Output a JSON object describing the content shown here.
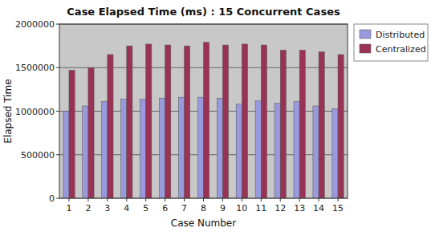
{
  "chart_data": {
    "type": "bar",
    "title": "Case Elapsed Time (ms) : 15 Concurrent Cases",
    "xlabel": "Case Number",
    "ylabel": "Elapsed Time",
    "categories": [
      1,
      2,
      3,
      4,
      5,
      6,
      7,
      8,
      9,
      10,
      11,
      12,
      13,
      14,
      15
    ],
    "series": [
      {
        "name": "Distributed",
        "color": "#9999dd",
        "values": [
          1000000,
          1060000,
          1110000,
          1140000,
          1140000,
          1150000,
          1160000,
          1160000,
          1150000,
          1080000,
          1120000,
          1090000,
          1110000,
          1060000,
          1030000
        ]
      },
      {
        "name": "Centralized",
        "color": "#993355",
        "values": [
          1470000,
          1500000,
          1650000,
          1750000,
          1770000,
          1760000,
          1750000,
          1790000,
          1760000,
          1770000,
          1760000,
          1700000,
          1700000,
          1680000,
          1650000
        ]
      }
    ],
    "ylim": [
      0,
      2000000
    ],
    "yticks": [
      0,
      500000,
      1000000,
      1500000,
      2000000
    ],
    "grid": true,
    "legend": "right"
  }
}
